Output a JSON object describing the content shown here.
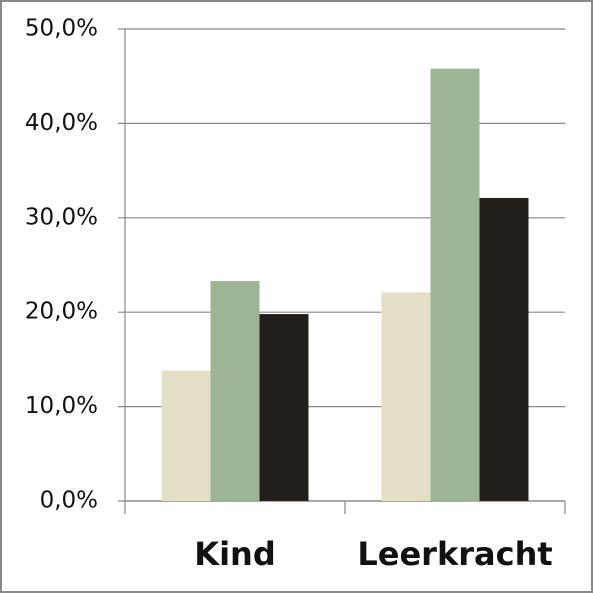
{
  "chart_data": {
    "type": "bar",
    "categories": [
      "Kind",
      "Leerkracht"
    ],
    "series": [
      {
        "color": "#e4dec7",
        "values": [
          13.8,
          22.1
        ]
      },
      {
        "color": "#9db594",
        "values": [
          23.3,
          45.8
        ]
      },
      {
        "color": "#221f1a",
        "values": [
          19.8,
          32.1
        ]
      }
    ],
    "ylim": [
      0,
      50
    ],
    "yticks": [
      {
        "value": 0,
        "label": "0,0%"
      },
      {
        "value": 10,
        "label": "10,0%"
      },
      {
        "value": 20,
        "label": "20,0%"
      },
      {
        "value": 30,
        "label": "30,0%"
      },
      {
        "value": 40,
        "label": "40,0%"
      },
      {
        "value": 50,
        "label": "50,0%"
      }
    ],
    "grid": true
  }
}
